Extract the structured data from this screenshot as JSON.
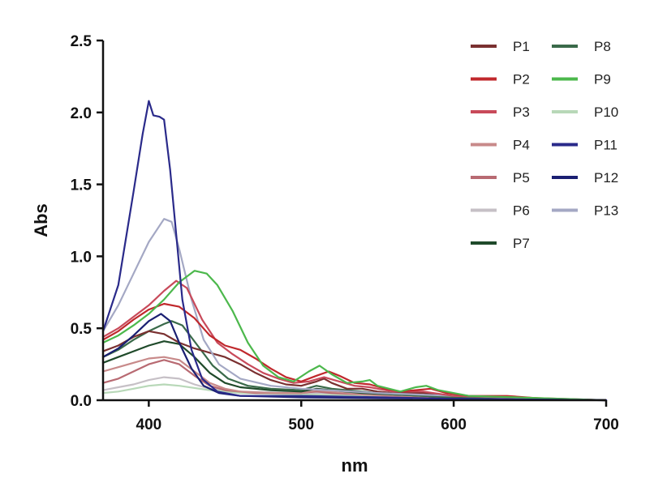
{
  "chart_data": {
    "type": "line",
    "xlabel": "nm",
    "ylabel": "Abs",
    "xlim": [
      370,
      700
    ],
    "ylim": [
      0,
      2.5
    ],
    "x_ticks": [
      400,
      500,
      600,
      700
    ],
    "y_ticks": [
      0.0,
      0.5,
      1.0,
      1.5,
      2.0,
      2.5
    ],
    "x_tick_labels": [
      "400",
      "500",
      "600",
      "700"
    ],
    "y_tick_labels": [
      "0.0",
      "0.5",
      "1.0",
      "1.5",
      "2.0",
      "2.5"
    ],
    "grid": false,
    "legend_position": "top-right",
    "series": [
      {
        "name": "P1",
        "color": "#7a3030",
        "points": [
          [
            370,
            0.34
          ],
          [
            380,
            0.38
          ],
          [
            390,
            0.44
          ],
          [
            400,
            0.48
          ],
          [
            410,
            0.46
          ],
          [
            420,
            0.4
          ],
          [
            430,
            0.36
          ],
          [
            440,
            0.33
          ],
          [
            450,
            0.3
          ],
          [
            460,
            0.25
          ],
          [
            470,
            0.19
          ],
          [
            480,
            0.14
          ],
          [
            490,
            0.11
          ],
          [
            500,
            0.1
          ],
          [
            510,
            0.13
          ],
          [
            515,
            0.15
          ],
          [
            520,
            0.12
          ],
          [
            530,
            0.08
          ],
          [
            540,
            0.08
          ],
          [
            550,
            0.06
          ],
          [
            560,
            0.05
          ],
          [
            580,
            0.05
          ],
          [
            600,
            0.03
          ],
          [
            630,
            0.02
          ],
          [
            660,
            0.01
          ],
          [
            700,
            0.0
          ]
        ]
      },
      {
        "name": "P2",
        "color": "#c0282c",
        "points": [
          [
            370,
            0.42
          ],
          [
            380,
            0.48
          ],
          [
            390,
            0.56
          ],
          [
            400,
            0.63
          ],
          [
            410,
            0.67
          ],
          [
            420,
            0.65
          ],
          [
            430,
            0.57
          ],
          [
            440,
            0.45
          ],
          [
            450,
            0.38
          ],
          [
            460,
            0.35
          ],
          [
            470,
            0.29
          ],
          [
            480,
            0.22
          ],
          [
            490,
            0.16
          ],
          [
            500,
            0.13
          ],
          [
            510,
            0.17
          ],
          [
            518,
            0.2
          ],
          [
            525,
            0.17
          ],
          [
            535,
            0.12
          ],
          [
            545,
            0.11
          ],
          [
            555,
            0.08
          ],
          [
            565,
            0.06
          ],
          [
            575,
            0.07
          ],
          [
            585,
            0.08
          ],
          [
            595,
            0.05
          ],
          [
            610,
            0.03
          ],
          [
            635,
            0.03
          ],
          [
            660,
            0.01
          ],
          [
            700,
            0.0
          ]
        ]
      },
      {
        "name": "P3",
        "color": "#c84a5a",
        "points": [
          [
            370,
            0.44
          ],
          [
            380,
            0.5
          ],
          [
            390,
            0.58
          ],
          [
            400,
            0.66
          ],
          [
            410,
            0.76
          ],
          [
            418,
            0.83
          ],
          [
            425,
            0.78
          ],
          [
            435,
            0.56
          ],
          [
            445,
            0.4
          ],
          [
            455,
            0.32
          ],
          [
            465,
            0.25
          ],
          [
            475,
            0.19
          ],
          [
            485,
            0.15
          ],
          [
            495,
            0.12
          ],
          [
            505,
            0.13
          ],
          [
            515,
            0.16
          ],
          [
            525,
            0.13
          ],
          [
            535,
            0.1
          ],
          [
            545,
            0.09
          ],
          [
            560,
            0.06
          ],
          [
            580,
            0.06
          ],
          [
            600,
            0.03
          ],
          [
            640,
            0.02
          ],
          [
            700,
            0.0
          ]
        ]
      },
      {
        "name": "P4",
        "color": "#c88a8a",
        "points": [
          [
            370,
            0.2
          ],
          [
            380,
            0.23
          ],
          [
            390,
            0.26
          ],
          [
            400,
            0.29
          ],
          [
            410,
            0.3
          ],
          [
            420,
            0.28
          ],
          [
            430,
            0.2
          ],
          [
            440,
            0.12
          ],
          [
            450,
            0.08
          ],
          [
            460,
            0.06
          ],
          [
            480,
            0.05
          ],
          [
            500,
            0.05
          ],
          [
            510,
            0.07
          ],
          [
            520,
            0.06
          ],
          [
            540,
            0.04
          ],
          [
            560,
            0.03
          ],
          [
            600,
            0.02
          ],
          [
            700,
            0.0
          ]
        ]
      },
      {
        "name": "P5",
        "color": "#b86a72",
        "points": [
          [
            370,
            0.12
          ],
          [
            380,
            0.15
          ],
          [
            390,
            0.2
          ],
          [
            400,
            0.25
          ],
          [
            410,
            0.28
          ],
          [
            420,
            0.25
          ],
          [
            430,
            0.17
          ],
          [
            440,
            0.1
          ],
          [
            450,
            0.07
          ],
          [
            470,
            0.05
          ],
          [
            500,
            0.05
          ],
          [
            510,
            0.06
          ],
          [
            520,
            0.05
          ],
          [
            540,
            0.04
          ],
          [
            580,
            0.02
          ],
          [
            700,
            0.0
          ]
        ]
      },
      {
        "name": "P6",
        "color": "#c6c0c6",
        "points": [
          [
            370,
            0.07
          ],
          [
            380,
            0.09
          ],
          [
            390,
            0.11
          ],
          [
            400,
            0.14
          ],
          [
            410,
            0.16
          ],
          [
            420,
            0.15
          ],
          [
            430,
            0.11
          ],
          [
            440,
            0.08
          ],
          [
            460,
            0.06
          ],
          [
            500,
            0.05
          ],
          [
            540,
            0.04
          ],
          [
            600,
            0.02
          ],
          [
            700,
            0.0
          ]
        ]
      },
      {
        "name": "P7",
        "color": "#1f4a2a",
        "points": [
          [
            370,
            0.26
          ],
          [
            380,
            0.3
          ],
          [
            390,
            0.34
          ],
          [
            400,
            0.38
          ],
          [
            410,
            0.41
          ],
          [
            420,
            0.39
          ],
          [
            430,
            0.3
          ],
          [
            440,
            0.19
          ],
          [
            450,
            0.12
          ],
          [
            460,
            0.09
          ],
          [
            480,
            0.07
          ],
          [
            500,
            0.06
          ],
          [
            510,
            0.08
          ],
          [
            520,
            0.07
          ],
          [
            540,
            0.05
          ],
          [
            560,
            0.04
          ],
          [
            600,
            0.02
          ],
          [
            700,
            0.0
          ]
        ]
      },
      {
        "name": "P8",
        "color": "#3a6a4a",
        "points": [
          [
            370,
            0.3
          ],
          [
            380,
            0.35
          ],
          [
            390,
            0.42
          ],
          [
            400,
            0.48
          ],
          [
            410,
            0.53
          ],
          [
            415,
            0.55
          ],
          [
            422,
            0.52
          ],
          [
            432,
            0.38
          ],
          [
            442,
            0.24
          ],
          [
            452,
            0.15
          ],
          [
            465,
            0.1
          ],
          [
            480,
            0.08
          ],
          [
            500,
            0.07
          ],
          [
            510,
            0.1
          ],
          [
            520,
            0.08
          ],
          [
            540,
            0.06
          ],
          [
            560,
            0.04
          ],
          [
            600,
            0.02
          ],
          [
            700,
            0.0
          ]
        ]
      },
      {
        "name": "P9",
        "color": "#4cb84c",
        "points": [
          [
            370,
            0.4
          ],
          [
            380,
            0.45
          ],
          [
            390,
            0.52
          ],
          [
            400,
            0.6
          ],
          [
            410,
            0.7
          ],
          [
            420,
            0.82
          ],
          [
            430,
            0.9
          ],
          [
            438,
            0.88
          ],
          [
            445,
            0.8
          ],
          [
            455,
            0.62
          ],
          [
            465,
            0.4
          ],
          [
            475,
            0.24
          ],
          [
            485,
            0.16
          ],
          [
            495,
            0.13
          ],
          [
            505,
            0.2
          ],
          [
            512,
            0.24
          ],
          [
            520,
            0.18
          ],
          [
            530,
            0.12
          ],
          [
            540,
            0.13
          ],
          [
            545,
            0.14
          ],
          [
            550,
            0.1
          ],
          [
            565,
            0.06
          ],
          [
            575,
            0.09
          ],
          [
            582,
            0.1
          ],
          [
            590,
            0.07
          ],
          [
            610,
            0.03
          ],
          [
            640,
            0.02
          ],
          [
            700,
            0.0
          ]
        ]
      },
      {
        "name": "P10",
        "color": "#b8d8b8",
        "points": [
          [
            370,
            0.05
          ],
          [
            380,
            0.06
          ],
          [
            390,
            0.08
          ],
          [
            400,
            0.1
          ],
          [
            410,
            0.11
          ],
          [
            420,
            0.1
          ],
          [
            440,
            0.07
          ],
          [
            460,
            0.05
          ],
          [
            500,
            0.04
          ],
          [
            550,
            0.03
          ],
          [
            600,
            0.02
          ],
          [
            700,
            0.0
          ]
        ]
      },
      {
        "name": "P11",
        "color": "#2a2a8a",
        "points": [
          [
            370,
            0.48
          ],
          [
            380,
            0.8
          ],
          [
            390,
            1.45
          ],
          [
            396,
            1.85
          ],
          [
            400,
            2.08
          ],
          [
            403,
            1.98
          ],
          [
            407,
            1.97
          ],
          [
            410,
            1.95
          ],
          [
            414,
            1.6
          ],
          [
            418,
            1.15
          ],
          [
            422,
            0.7
          ],
          [
            428,
            0.35
          ],
          [
            435,
            0.15
          ],
          [
            445,
            0.06
          ],
          [
            460,
            0.03
          ],
          [
            500,
            0.03
          ],
          [
            550,
            0.02
          ],
          [
            600,
            0.01
          ],
          [
            700,
            0.0
          ]
        ]
      },
      {
        "name": "P12",
        "color": "#1a1f72",
        "points": [
          [
            370,
            0.3
          ],
          [
            380,
            0.36
          ],
          [
            390,
            0.45
          ],
          [
            400,
            0.55
          ],
          [
            408,
            0.6
          ],
          [
            414,
            0.55
          ],
          [
            420,
            0.4
          ],
          [
            428,
            0.22
          ],
          [
            436,
            0.1
          ],
          [
            446,
            0.05
          ],
          [
            460,
            0.03
          ],
          [
            500,
            0.02
          ],
          [
            600,
            0.01
          ],
          [
            700,
            0.0
          ]
        ]
      },
      {
        "name": "P13",
        "color": "#a4a8c4",
        "points": [
          [
            370,
            0.48
          ],
          [
            380,
            0.66
          ],
          [
            390,
            0.88
          ],
          [
            400,
            1.1
          ],
          [
            410,
            1.26
          ],
          [
            415,
            1.24
          ],
          [
            420,
            1.05
          ],
          [
            428,
            0.7
          ],
          [
            436,
            0.42
          ],
          [
            446,
            0.25
          ],
          [
            460,
            0.15
          ],
          [
            480,
            0.1
          ],
          [
            500,
            0.08
          ],
          [
            550,
            0.05
          ],
          [
            600,
            0.03
          ],
          [
            700,
            0.0
          ]
        ]
      }
    ]
  }
}
